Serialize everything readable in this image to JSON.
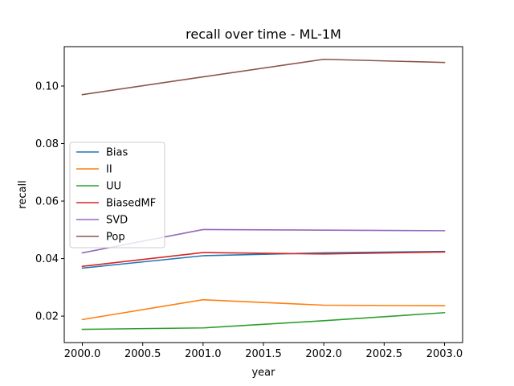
{
  "chart_data": {
    "type": "line",
    "title": "recall over time - ML-1M",
    "xlabel": "year",
    "ylabel": "recall",
    "x": [
      2000.0,
      2001.0,
      2002.0,
      2003.0
    ],
    "xlim": [
      1999.85,
      2003.15
    ],
    "ylim": [
      0.0108,
      0.1137
    ],
    "xticks": [
      2000.0,
      2000.5,
      2001.0,
      2001.5,
      2002.0,
      2002.5,
      2003.0
    ],
    "xtick_labels": [
      "2000.0",
      "2000.5",
      "2001.0",
      "2001.5",
      "2002.0",
      "2002.5",
      "2003.0"
    ],
    "yticks": [
      0.02,
      0.04,
      0.06,
      0.08,
      0.1
    ],
    "ytick_labels": [
      "0.02",
      "0.04",
      "0.06",
      "0.08",
      "0.10"
    ],
    "grid": false,
    "legend_position": "center-left",
    "series": [
      {
        "name": "Bias",
        "color": "#1f77b4",
        "values": [
          0.0367,
          0.041,
          0.042,
          0.0425
        ]
      },
      {
        "name": "II",
        "color": "#ff7f0e",
        "values": [
          0.0188,
          0.0257,
          0.0238,
          0.0236
        ]
      },
      {
        "name": "UU",
        "color": "#2ca02c",
        "values": [
          0.0154,
          0.0159,
          0.0184,
          0.0212
        ]
      },
      {
        "name": "BiasedMF",
        "color": "#d62728",
        "values": [
          0.0373,
          0.0421,
          0.0416,
          0.0423
        ]
      },
      {
        "name": "SVD",
        "color": "#9467bd",
        "values": [
          0.042,
          0.0501,
          0.0499,
          0.0497
        ]
      },
      {
        "name": "Pop",
        "color": "#8c564b",
        "values": [
          0.097,
          0.1032,
          0.1093,
          0.1082
        ]
      }
    ]
  }
}
